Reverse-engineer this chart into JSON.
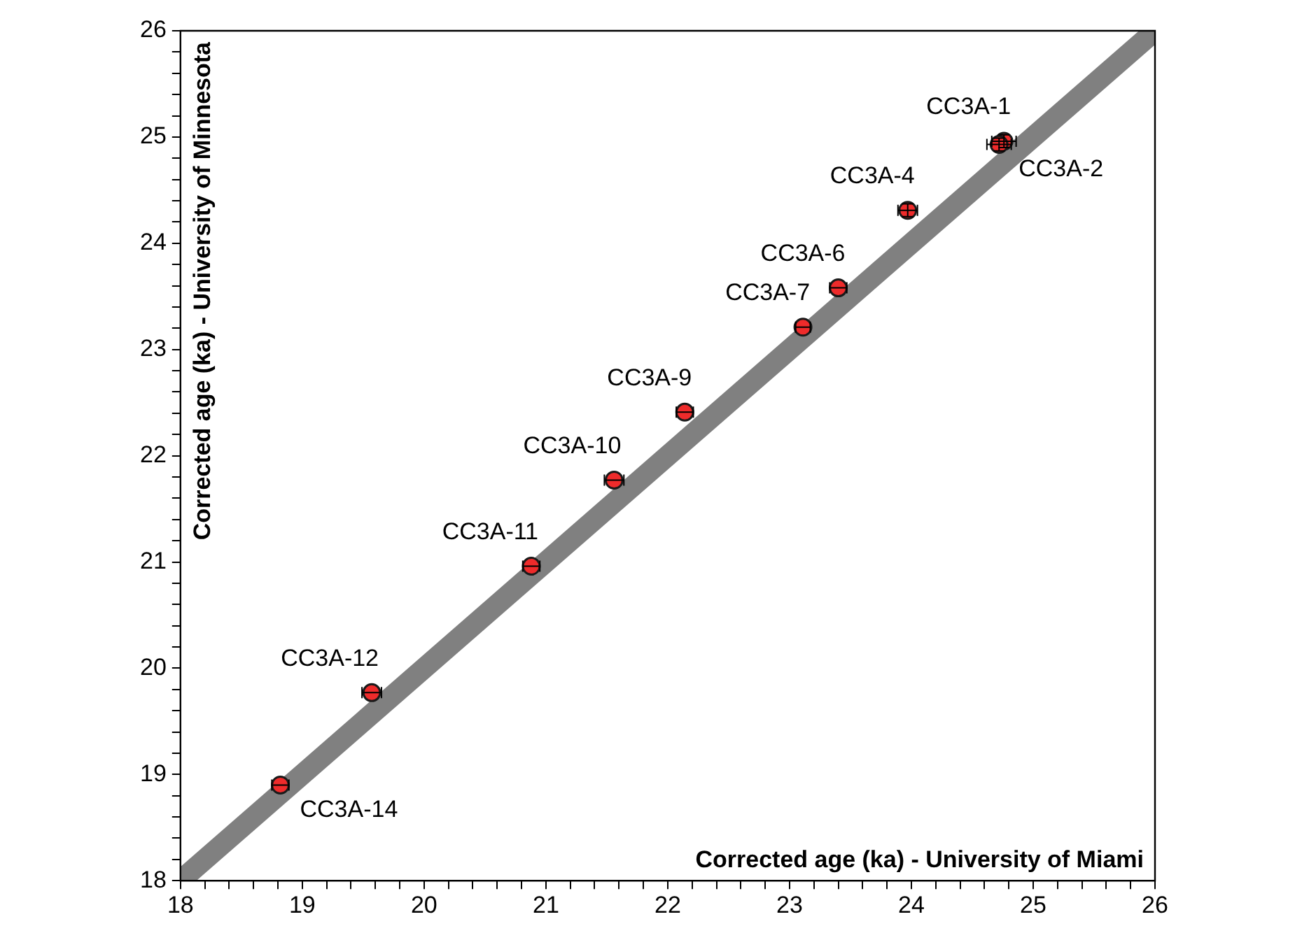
{
  "chart_data": {
    "type": "scatter",
    "xlabel": "Corrected age (ka) - University of Miami",
    "ylabel": "Corrected age (ka) - University of Minnesota",
    "xlim": [
      18,
      26
    ],
    "ylim": [
      18,
      26
    ],
    "xticks": [
      18,
      {
        "value": 18.2,
        "label": null
      },
      {
        "value": 18.4,
        "label": null
      },
      {
        "value": 18.6,
        "label": null
      },
      {
        "value": 18.8,
        "label": null
      },
      19,
      {
        "value": 19.2,
        "label": null
      },
      {
        "value": 19.4,
        "label": null
      },
      {
        "value": 19.6,
        "label": null
      },
      {
        "value": 19.8,
        "label": null
      },
      20,
      {
        "value": 20.2,
        "label": null
      },
      {
        "value": 20.4,
        "label": null
      },
      {
        "value": 20.6,
        "label": null
      },
      {
        "value": 20.8,
        "label": null
      },
      21,
      {
        "value": 21.2,
        "label": null
      },
      {
        "value": 21.4,
        "label": null
      },
      {
        "value": 21.6,
        "label": null
      },
      {
        "value": 21.8,
        "label": null
      },
      22,
      {
        "value": 22.2,
        "label": null
      },
      {
        "value": 22.4,
        "label": null
      },
      {
        "value": 22.6,
        "label": null
      },
      {
        "value": 22.8,
        "label": null
      },
      23,
      {
        "value": 23.2,
        "label": null
      },
      {
        "value": 23.4,
        "label": null
      },
      {
        "value": 23.6,
        "label": null
      },
      {
        "value": 23.8,
        "label": null
      },
      24,
      {
        "value": 24.2,
        "label": null
      },
      {
        "value": 24.4,
        "label": null
      },
      {
        "value": 24.6,
        "label": null
      },
      {
        "value": 24.8,
        "label": null
      },
      25,
      {
        "value": 25.2,
        "label": null
      },
      {
        "value": 25.4,
        "label": null
      },
      {
        "value": 25.6,
        "label": null
      },
      {
        "value": 25.8,
        "label": null
      },
      26
    ],
    "yticks": [
      18,
      {
        "value": 18.2,
        "label": null
      },
      {
        "value": 18.4,
        "label": null
      },
      {
        "value": 18.6,
        "label": null
      },
      {
        "value": 18.8,
        "label": null
      },
      19,
      {
        "value": 19.2,
        "label": null
      },
      {
        "value": 19.4,
        "label": null
      },
      {
        "value": 19.6,
        "label": null
      },
      {
        "value": 19.8,
        "label": null
      },
      20,
      {
        "value": 20.2,
        "label": null
      },
      {
        "value": 20.4,
        "label": null
      },
      {
        "value": 20.6,
        "label": null
      },
      {
        "value": 20.8,
        "label": null
      },
      21,
      {
        "value": 21.2,
        "label": null
      },
      {
        "value": 21.4,
        "label": null
      },
      {
        "value": 21.6,
        "label": null
      },
      {
        "value": 21.8,
        "label": null
      },
      22,
      {
        "value": 22.2,
        "label": null
      },
      {
        "value": 22.4,
        "label": null
      },
      {
        "value": 22.6,
        "label": null
      },
      {
        "value": 22.8,
        "label": null
      },
      23,
      {
        "value": 23.2,
        "label": null
      },
      {
        "value": 23.4,
        "label": null
      },
      {
        "value": 23.6,
        "label": null
      },
      {
        "value": 23.8,
        "label": null
      },
      24,
      {
        "value": 24.2,
        "label": null
      },
      {
        "value": 24.4,
        "label": null
      },
      {
        "value": 24.6,
        "label": null
      },
      {
        "value": 24.8,
        "label": null
      },
      25,
      {
        "value": 25.2,
        "label": null
      },
      {
        "value": 25.4,
        "label": null
      },
      {
        "value": 25.6,
        "label": null
      },
      {
        "value": 25.8,
        "label": null
      },
      26
    ],
    "series": [
      {
        "type": "line",
        "marker": "none",
        "color": "#808080",
        "x": [
          18,
          26
        ],
        "values": [
          18,
          26
        ]
      },
      {
        "color": "#ee2b2b",
        "x": [
          24.76,
          24.72,
          23.97,
          23.4,
          23.11,
          22.14,
          21.56,
          20.88,
          19.57,
          18.82
        ],
        "values": [
          24.96,
          24.93,
          24.31,
          23.58,
          23.21,
          22.41,
          21.77,
          20.96,
          19.77,
          18.9
        ],
        "xerrors": [
          0.1,
          0.1,
          0.08,
          0.07,
          0.06,
          0.07,
          0.08,
          0.07,
          0.08,
          0.07
        ],
        "errors": [
          0.06,
          0.06,
          0.06,
          null,
          null,
          null,
          null,
          null,
          null,
          null
        ]
      }
    ],
    "annotations": [
      {
        "text": "CC3A-1",
        "x": 24.76,
        "y": 24.96
      },
      {
        "text": "CC3A-2",
        "x": 24.72,
        "y": 24.93
      },
      {
        "text": "CC3A-4",
        "x": 23.97,
        "y": 24.31
      },
      {
        "text": "CC3A-6",
        "x": 23.4,
        "y": 23.58
      },
      {
        "text": "CC3A-7",
        "x": 23.11,
        "y": 23.21
      },
      {
        "text": "CC3A-9",
        "x": 22.14,
        "y": 22.41
      },
      {
        "text": "CC3A-10",
        "x": 21.56,
        "y": 21.77
      },
      {
        "text": "CC3A-11",
        "x": 20.88,
        "y": 20.96
      },
      {
        "text": "CC3A-12",
        "x": 19.57,
        "y": 19.77
      },
      {
        "text": "CC3A-14",
        "x": 18.82,
        "y": 18.9
      }
    ],
    "marker": "circle",
    "legend": false,
    "grid": false
  }
}
